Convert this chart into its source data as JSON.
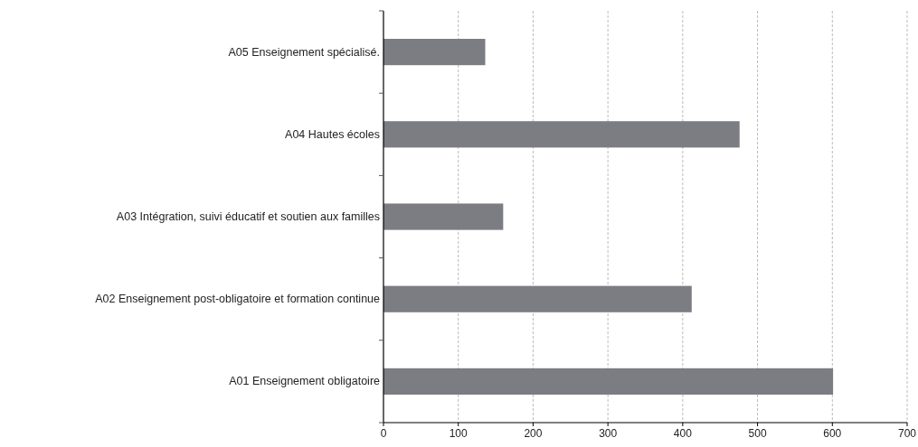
{
  "chart_data": {
    "type": "bar",
    "orientation": "horizontal",
    "categories": [
      "A05 Enseignement spécialisé.",
      "A04 Hautes écoles",
      "A03 Intégration, suivi éducatif et soutien aux familles",
      "A02 Enseignement post-obligatoire et formation continue",
      "A01 Enseignement obligatoire"
    ],
    "values": [
      136,
      476,
      160,
      412,
      601
    ],
    "color": "#7c7d82",
    "xlim": [
      0,
      700
    ],
    "xticks": [
      0,
      100,
      200,
      300,
      400,
      500,
      600,
      700
    ],
    "grid": "x"
  }
}
